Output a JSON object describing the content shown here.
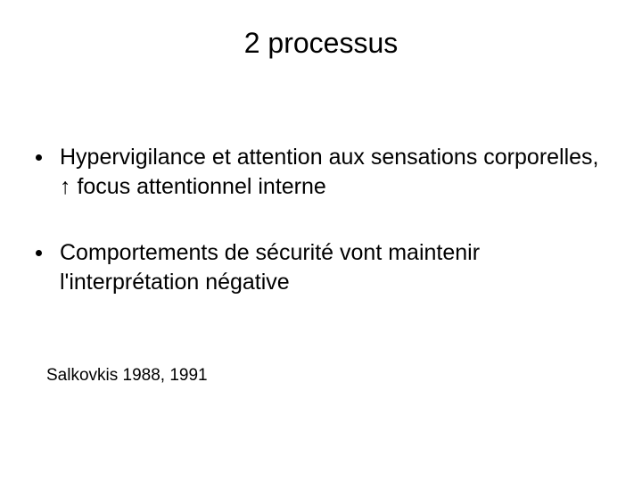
{
  "title": "2 processus",
  "bullets": [
    "Hypervigilance et  attention aux sensations corporelles, ↑ focus attentionnel interne",
    "Comportements de sécurité  vont maintenir l'interprétation négative"
  ],
  "citation": "Salkovkis 1988, 1991",
  "colors": {
    "background": "#ffffff",
    "text": "#000000"
  },
  "typography": {
    "title_fontsize": 32,
    "body_fontsize": 25,
    "citation_fontsize": 19,
    "font_family": "Arial"
  }
}
